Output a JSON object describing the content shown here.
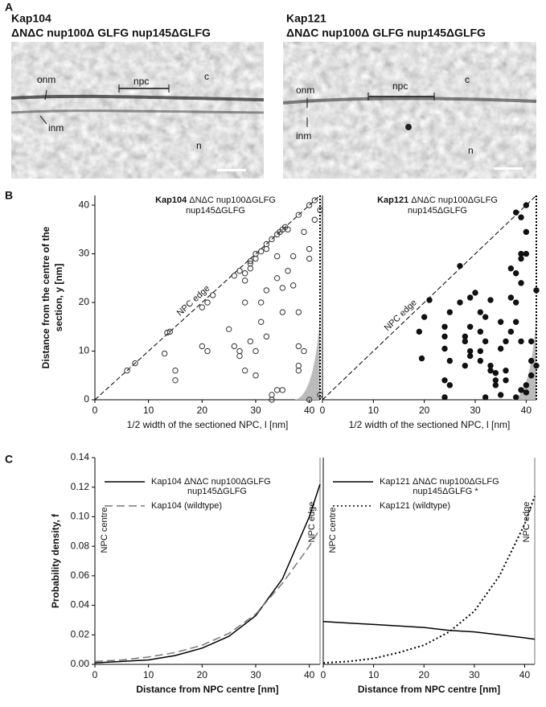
{
  "panel_labels": [
    "A",
    "B",
    "C"
  ],
  "micrographs": [
    {
      "title": "Kap104",
      "subtitle": "ΔNΔC nup100Δ GLFG nup145ΔGLFG",
      "labels": [
        "onm",
        "inm",
        "npc",
        "c",
        "n"
      ]
    },
    {
      "title": "Kap121",
      "subtitle": "ΔNΔC nup100Δ GLFG nup145ΔGLFG",
      "labels": [
        "onm",
        "inm",
        "npc",
        "c",
        "n"
      ]
    }
  ],
  "chart_data": [
    {
      "type": "scatter",
      "title": "Kap104",
      "subtitle": [
        "ΔNΔC nup100ΔGLFG",
        "nup145ΔGLFG"
      ],
      "ylabel": [
        "Distance from the centre of the",
        "section, y [nm]"
      ],
      "xlabel": "1/2 width of the sectioned NPC, l [nm]",
      "annotation": "NPC edge",
      "marker": "open",
      "color": "#333333",
      "x": [
        6,
        7.5,
        13.5,
        14,
        20,
        21,
        22,
        26,
        27,
        29,
        30,
        30,
        31,
        32,
        32,
        33,
        34,
        34.5,
        35,
        35.5,
        36,
        38,
        40,
        41,
        42,
        13,
        15,
        15,
        20,
        21,
        25,
        26,
        27,
        27,
        28,
        28,
        28,
        28,
        29,
        29,
        29,
        30,
        30,
        31,
        31,
        32,
        32,
        33,
        33,
        34,
        34,
        34,
        35,
        35,
        35,
        36,
        37,
        37,
        38,
        38,
        38,
        38,
        39,
        39,
        40,
        40,
        40,
        41,
        42
      ],
      "values": [
        6,
        7.5,
        13.8,
        14,
        19,
        20,
        21.5,
        25.5,
        26.5,
        28,
        29,
        30,
        30.5,
        31,
        32,
        33,
        34,
        34.5,
        35,
        35.5,
        35,
        38,
        40,
        41,
        39,
        9.5,
        6,
        4,
        11,
        10,
        14.5,
        11,
        10,
        9,
        6,
        26,
        24.5,
        20,
        28.5,
        27,
        12,
        10,
        5,
        16,
        20,
        22.5,
        13,
        1,
        0,
        2,
        25,
        29.5,
        18,
        23,
        2,
        26.5,
        29.5,
        23.5,
        18,
        7,
        6,
        11,
        34.5,
        10,
        31,
        29,
        0,
        37,
        1
      ],
      "xlim": [
        0,
        42
      ],
      "ylim": [
        0,
        42
      ],
      "xticks": [
        0,
        10,
        20,
        30,
        40
      ],
      "yticks": [
        0,
        10,
        20,
        30,
        40
      ]
    },
    {
      "type": "scatter",
      "title": "Kap121",
      "subtitle": [
        "ΔNΔC nup100ΔGLFG",
        "nup145ΔGLFG"
      ],
      "xlabel": "1/2 width of the sectioned NPC, l [nm]",
      "annotation": "NPC edge",
      "marker": "filled",
      "color": "#111111",
      "x": [
        19,
        19.5,
        20,
        21,
        24,
        24,
        24,
        24,
        25,
        25,
        25,
        24,
        27,
        27,
        28,
        28,
        28,
        29,
        29,
        29,
        29,
        30,
        31,
        31,
        31,
        31,
        32,
        32,
        32,
        33,
        33,
        33,
        34,
        34,
        34,
        35,
        35,
        35,
        36,
        36,
        36,
        37,
        37,
        37,
        38,
        38,
        38,
        38,
        38,
        39,
        39,
        39,
        39,
        39,
        39,
        40,
        40,
        40,
        40,
        40,
        41,
        41,
        41,
        42,
        42
      ],
      "values": [
        14,
        8.5,
        17,
        20.5,
        15,
        13,
        10.5,
        4,
        18,
        8,
        3,
        0.5,
        27.5,
        20,
        13,
        12,
        7,
        21,
        15,
        10,
        9,
        22,
        18,
        14,
        10,
        8,
        17,
        12,
        0.5,
        20.5,
        7,
        6,
        5.5,
        3,
        4,
        16,
        10.5,
        1,
        12,
        6,
        4,
        21,
        14,
        27,
        38.5,
        26,
        20,
        16,
        0.5,
        37.5,
        30,
        29,
        24,
        12,
        2,
        40,
        34.5,
        30,
        3,
        1.5,
        12,
        8,
        5,
        22.5,
        7
      ],
      "xlim": [
        0,
        42
      ],
      "ylim": [
        0,
        42
      ],
      "xticks": [
        0,
        10,
        20,
        30,
        40
      ]
    },
    {
      "type": "line",
      "ylabel": [
        "Probability density, f"
      ],
      "xlabel": "Distance from NPC centre [nm]",
      "annotations": [
        "NPC centre",
        "NPC edge"
      ],
      "x": [
        0,
        5,
        10,
        15,
        20,
        25,
        30,
        35,
        40,
        42
      ],
      "series": [
        {
          "name": [
            "Kap104 ΔNΔC nup100ΔGLFG",
            "nup145ΔGLFG"
          ],
          "color": "#000000",
          "dash": "solid",
          "values": [
            0.001,
            0.002,
            0.003,
            0.006,
            0.011,
            0.019,
            0.033,
            0.058,
            0.1,
            0.122
          ]
        },
        {
          "name": [
            "Kap104 (wildtype)"
          ],
          "color": "#777777",
          "dash": "dashed",
          "values": [
            0.002,
            0.003,
            0.005,
            0.008,
            0.013,
            0.021,
            0.034,
            0.055,
            0.08,
            0.092
          ]
        }
      ],
      "xlim": [
        0,
        42
      ],
      "ylim": [
        0,
        0.14
      ],
      "xticks": [
        0,
        10,
        20,
        30,
        40
      ],
      "yticks": [
        {
          "value": 0,
          "label": "0.00"
        },
        0.02,
        0.04,
        0.06,
        0.08,
        {
          "value": 0.1,
          "label": "0.10"
        },
        0.12,
        0.14
      ]
    },
    {
      "type": "line",
      "xlabel": "Distance from NPC centre [nm]",
      "annotations": [
        "NPC centre",
        "NPC edge"
      ],
      "x": [
        0,
        5,
        10,
        15,
        20,
        25,
        30,
        35,
        40,
        42
      ],
      "series": [
        {
          "name": [
            "Kap121 ΔNΔC nup100ΔGLFG",
            "nup145ΔGLFG *"
          ],
          "color": "#000000",
          "dash": "solid",
          "values": [
            0.029,
            0.028,
            0.027,
            0.026,
            0.025,
            0.023,
            0.022,
            0.02,
            0.018,
            0.017
          ]
        },
        {
          "name": [
            "Kap121 (wildtype)"
          ],
          "color": "#000000",
          "dash": "dotted",
          "values": [
            0.001,
            0.002,
            0.004,
            0.008,
            0.013,
            0.022,
            0.036,
            0.06,
            0.095,
            0.114
          ]
        }
      ],
      "xlim": [
        0,
        42
      ],
      "ylim": [
        0,
        0.14
      ],
      "xticks": [
        0,
        10,
        20,
        30,
        40
      ]
    }
  ]
}
